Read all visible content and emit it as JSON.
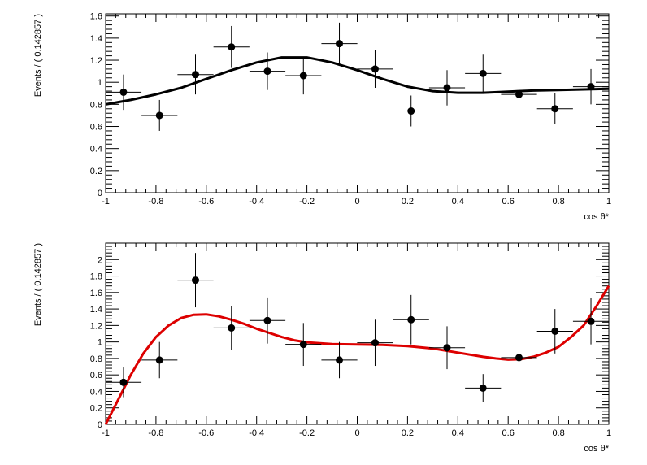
{
  "chart_data": [
    {
      "type": "scatter",
      "xlabel": "cos θ*",
      "ylabel": "Events / ( 0.142857 )",
      "xlim": [
        -1,
        1
      ],
      "ylim": [
        0,
        1.62
      ],
      "x_ticks": [
        -1,
        -0.8,
        -0.6,
        -0.4,
        -0.2,
        0,
        0.2,
        0.4,
        0.6,
        0.8,
        1
      ],
      "x_tick_labels": [
        "-1",
        "-0.8",
        "-0.6",
        "-0.4",
        "-0.2",
        "0",
        "0.2",
        "0.4",
        "0.6",
        "0.8",
        "1"
      ],
      "y_ticks": [
        0,
        0.2,
        0.4,
        0.6,
        0.8,
        1,
        1.2,
        1.4,
        1.6
      ],
      "y_tick_labels": [
        "0",
        "0.2",
        "0.4",
        "0.6",
        "0.8",
        "1",
        "1.2",
        "1.4",
        "1.6"
      ],
      "x_err": 0.0714,
      "points": [
        {
          "x": -0.929,
          "y": 0.91,
          "err": 0.16
        },
        {
          "x": -0.786,
          "y": 0.7,
          "err": 0.14
        },
        {
          "x": -0.643,
          "y": 1.07,
          "err": 0.18
        },
        {
          "x": -0.5,
          "y": 1.32,
          "err": 0.19
        },
        {
          "x": -0.357,
          "y": 1.1,
          "err": 0.17
        },
        {
          "x": -0.214,
          "y": 1.06,
          "err": 0.17
        },
        {
          "x": -0.071,
          "y": 1.35,
          "err": 0.19
        },
        {
          "x": 0.071,
          "y": 1.12,
          "err": 0.17
        },
        {
          "x": 0.214,
          "y": 0.74,
          "err": 0.14
        },
        {
          "x": 0.357,
          "y": 0.95,
          "err": 0.16
        },
        {
          "x": 0.5,
          "y": 1.08,
          "err": 0.17
        },
        {
          "x": 0.643,
          "y": 0.89,
          "err": 0.16
        },
        {
          "x": 0.786,
          "y": 0.76,
          "err": 0.14
        },
        {
          "x": 0.929,
          "y": 0.96,
          "err": 0.16
        }
      ],
      "fit_color": "#000000",
      "fit": [
        [
          -1,
          0.8
        ],
        [
          -0.9,
          0.84
        ],
        [
          -0.8,
          0.89
        ],
        [
          -0.7,
          0.95
        ],
        [
          -0.6,
          1.03
        ],
        [
          -0.5,
          1.11
        ],
        [
          -0.4,
          1.18
        ],
        [
          -0.3,
          1.225
        ],
        [
          -0.2,
          1.225
        ],
        [
          -0.1,
          1.18
        ],
        [
          0,
          1.11
        ],
        [
          0.1,
          1.03
        ],
        [
          0.2,
          0.96
        ],
        [
          0.3,
          0.92
        ],
        [
          0.4,
          0.905
        ],
        [
          0.5,
          0.905
        ],
        [
          0.6,
          0.915
        ],
        [
          0.7,
          0.925
        ],
        [
          0.8,
          0.93
        ],
        [
          0.9,
          0.935
        ],
        [
          1,
          0.94
        ]
      ]
    },
    {
      "type": "scatter",
      "xlabel": "cos θ*",
      "ylabel": "Events / ( 0.142857 )",
      "xlim": [
        -1,
        1
      ],
      "ylim": [
        0,
        2.2
      ],
      "x_ticks": [
        -1,
        -0.8,
        -0.6,
        -0.4,
        -0.2,
        0,
        0.2,
        0.4,
        0.6,
        0.8,
        1
      ],
      "x_tick_labels": [
        "-1",
        "-0.8",
        "-0.6",
        "-0.4",
        "-0.2",
        "0",
        "0.2",
        "0.4",
        "0.6",
        "0.8",
        "1"
      ],
      "y_ticks": [
        0,
        0.2,
        0.4,
        0.6,
        0.8,
        1,
        1.2,
        1.4,
        1.6,
        1.8,
        2
      ],
      "y_tick_labels": [
        "0",
        "0.2",
        "0.4",
        "0.6",
        "0.8",
        "1",
        "1.2",
        "1.4",
        "1.6",
        "1.8",
        "2"
      ],
      "x_err": 0.0714,
      "points": [
        {
          "x": -0.929,
          "y": 0.51,
          "err": 0.18
        },
        {
          "x": -0.786,
          "y": 0.78,
          "err": 0.22
        },
        {
          "x": -0.643,
          "y": 1.75,
          "err": 0.33
        },
        {
          "x": -0.5,
          "y": 1.17,
          "err": 0.27
        },
        {
          "x": -0.357,
          "y": 1.26,
          "err": 0.28
        },
        {
          "x": -0.214,
          "y": 0.97,
          "err": 0.26
        },
        {
          "x": -0.071,
          "y": 0.78,
          "err": 0.22
        },
        {
          "x": 0.071,
          "y": 0.99,
          "err": 0.28
        },
        {
          "x": 0.214,
          "y": 1.27,
          "err": 0.3
        },
        {
          "x": 0.357,
          "y": 0.93,
          "err": 0.26
        },
        {
          "x": 0.5,
          "y": 0.44,
          "err": 0.17
        },
        {
          "x": 0.643,
          "y": 0.81,
          "err": 0.25
        },
        {
          "x": 0.786,
          "y": 1.13,
          "err": 0.27
        },
        {
          "x": 0.929,
          "y": 1.25,
          "err": 0.28
        }
      ],
      "fit_color": "#dd0000",
      "fit": [
        [
          -1,
          0.0
        ],
        [
          -0.95,
          0.3
        ],
        [
          -0.9,
          0.6
        ],
        [
          -0.85,
          0.86
        ],
        [
          -0.8,
          1.06
        ],
        [
          -0.75,
          1.2
        ],
        [
          -0.7,
          1.29
        ],
        [
          -0.65,
          1.33
        ],
        [
          -0.6,
          1.335
        ],
        [
          -0.55,
          1.31
        ],
        [
          -0.5,
          1.27
        ],
        [
          -0.45,
          1.22
        ],
        [
          -0.4,
          1.16
        ],
        [
          -0.35,
          1.11
        ],
        [
          -0.3,
          1.06
        ],
        [
          -0.25,
          1.02
        ],
        [
          -0.2,
          0.995
        ],
        [
          -0.1,
          0.975
        ],
        [
          0,
          0.97
        ],
        [
          0.1,
          0.965
        ],
        [
          0.2,
          0.95
        ],
        [
          0.3,
          0.92
        ],
        [
          0.4,
          0.87
        ],
        [
          0.5,
          0.82
        ],
        [
          0.55,
          0.8
        ],
        [
          0.6,
          0.785
        ],
        [
          0.65,
          0.79
        ],
        [
          0.7,
          0.82
        ],
        [
          0.75,
          0.87
        ],
        [
          0.8,
          0.94
        ],
        [
          0.85,
          1.06
        ],
        [
          0.9,
          1.2
        ],
        [
          0.95,
          1.43
        ],
        [
          1,
          1.68
        ]
      ]
    }
  ]
}
